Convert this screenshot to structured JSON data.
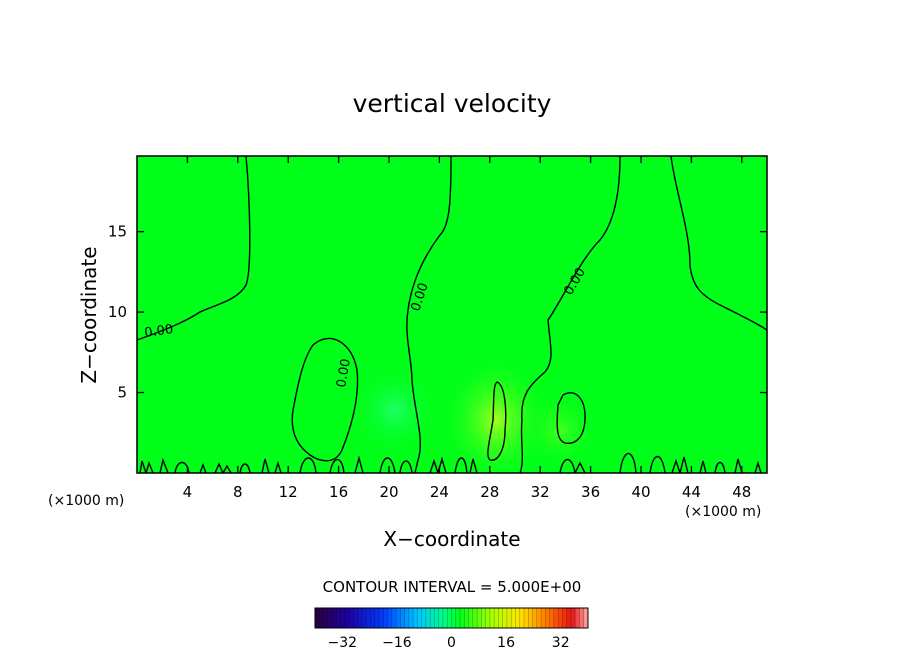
{
  "chart_data": {
    "type": "heatmap",
    "title": "vertical velocity",
    "xlabel": "X−coordinate",
    "ylabel": "Z−coordinate",
    "x_unit": "(×1000 m)",
    "z_unit": "(×1000 m)",
    "xlim": [
      0,
      50
    ],
    "ylim": [
      0,
      19.7
    ],
    "x_ticks": [
      4,
      8,
      12,
      16,
      20,
      24,
      28,
      32,
      36,
      40,
      44,
      48
    ],
    "y_ticks": [
      5,
      10,
      15
    ],
    "contour_interval_text": "CONTOUR INTERVAL = 5.000E+00",
    "contour_labels": [
      "0.00",
      "0.00",
      "0.00",
      "0.00"
    ],
    "colorbar": {
      "min": -40,
      "max": 40,
      "tick_values": [
        -32,
        -16,
        0,
        16,
        32
      ],
      "tick_labels": [
        "−32",
        "−16",
        "0",
        "16",
        "32"
      ]
    },
    "field_background": "#00ff19",
    "contour_color": "#000000"
  }
}
